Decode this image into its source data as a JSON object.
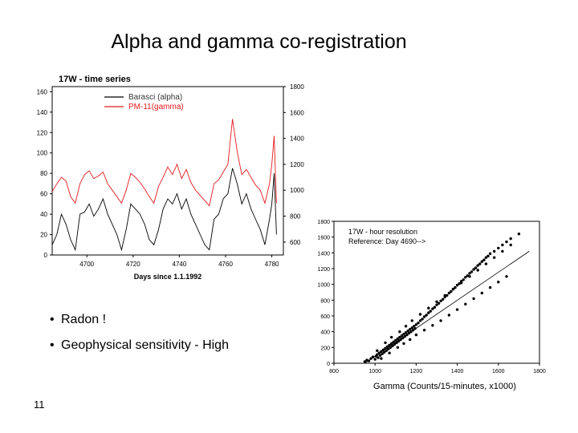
{
  "slide": {
    "title": "Alpha and gamma co-registration",
    "bullets": [
      "Radon !",
      "Geophysical sensitivity - High"
    ],
    "number": "11"
  },
  "chart_data": [
    {
      "type": "line",
      "title": "17W - time series",
      "xlabel": "Days since 1.1.1992",
      "xlim": [
        4685,
        4785
      ],
      "xticks": [
        4700,
        4720,
        4740,
        4760,
        4780
      ],
      "ylim_left": [
        0,
        165
      ],
      "yticks_left": [
        0,
        20,
        40,
        60,
        80,
        100,
        120,
        140,
        160
      ],
      "ylim_right": [
        500,
        1800
      ],
      "yticks_right": [
        600,
        800,
        1000,
        1200,
        1400,
        1600,
        1800
      ],
      "legend_position": "top-right",
      "series": [
        {
          "name": "Barasci (alpha)",
          "color": "#000000",
          "axis": "left",
          "x": [
            4685,
            4687,
            4689,
            4691,
            4693,
            4695,
            4697,
            4699,
            4701,
            4703,
            4705,
            4707,
            4709,
            4711,
            4713,
            4715,
            4717,
            4719,
            4721,
            4723,
            4725,
            4727,
            4729,
            4731,
            4733,
            4735,
            4737,
            4739,
            4741,
            4743,
            4745,
            4747,
            4749,
            4751,
            4753,
            4755,
            4757,
            4759,
            4761,
            4763,
            4765,
            4767,
            4769,
            4771,
            4773,
            4775,
            4777,
            4779,
            4780,
            4781,
            4782
          ],
          "y": [
            10,
            20,
            40,
            30,
            15,
            5,
            40,
            42,
            50,
            38,
            45,
            55,
            40,
            30,
            20,
            5,
            25,
            50,
            45,
            40,
            30,
            15,
            10,
            25,
            45,
            55,
            50,
            60,
            45,
            55,
            40,
            30,
            20,
            10,
            5,
            35,
            40,
            55,
            60,
            85,
            70,
            50,
            60,
            45,
            35,
            25,
            10,
            35,
            50,
            80,
            20
          ]
        },
        {
          "name": "PM-11(gamma)",
          "color": "#e31a1c",
          "axis": "right",
          "x": [
            4685,
            4687,
            4689,
            4691,
            4693,
            4695,
            4697,
            4699,
            4701,
            4703,
            4705,
            4707,
            4709,
            4711,
            4713,
            4715,
            4717,
            4719,
            4721,
            4723,
            4725,
            4727,
            4729,
            4731,
            4733,
            4735,
            4737,
            4739,
            4741,
            4743,
            4745,
            4747,
            4749,
            4751,
            4753,
            4755,
            4757,
            4759,
            4761,
            4763,
            4765,
            4767,
            4769,
            4771,
            4773,
            4775,
            4777,
            4779,
            4780,
            4781,
            4782
          ],
          "y": [
            990,
            1050,
            1100,
            1070,
            950,
            900,
            1050,
            1120,
            1150,
            1090,
            1110,
            1140,
            1050,
            1000,
            950,
            900,
            1000,
            1130,
            1100,
            1060,
            1010,
            950,
            900,
            1030,
            1100,
            1180,
            1120,
            1200,
            1090,
            1160,
            1060,
            1000,
            960,
            920,
            880,
            1050,
            1080,
            1140,
            1200,
            1550,
            1300,
            1120,
            1160,
            1100,
            1040,
            1000,
            900,
            1050,
            1200,
            1420,
            900
          ]
        }
      ]
    },
    {
      "type": "scatter",
      "title": "17W - hour resolution",
      "subtitle": "Reference: Day 4690-->",
      "xlabel": "Gamma (Counts/15-minutes, x1000)",
      "xlim": [
        800,
        1800
      ],
      "xticks": [
        800,
        1000,
        1200,
        1400,
        1600,
        1800
      ],
      "ylim": [
        0,
        1800
      ],
      "yticks": [
        0,
        200,
        400,
        600,
        800,
        1000,
        1200,
        1400,
        1600,
        1800
      ],
      "trend_line": {
        "x": [
          950,
          1750
        ],
        "y": [
          0,
          1420
        ]
      },
      "points": {
        "x": [
          950,
          960,
          970,
          980,
          990,
          1000,
          1005,
          1010,
          1015,
          1020,
          1025,
          1030,
          1035,
          1040,
          1045,
          1050,
          1055,
          1060,
          1065,
          1070,
          1075,
          1080,
          1085,
          1090,
          1095,
          1100,
          1105,
          1110,
          1115,
          1120,
          1125,
          1130,
          1135,
          1140,
          1145,
          1150,
          1155,
          1160,
          1165,
          1170,
          1175,
          1180,
          1185,
          1190,
          1195,
          1200,
          1210,
          1220,
          1230,
          1240,
          1250,
          1260,
          1270,
          1280,
          1290,
          1300,
          1310,
          1320,
          1330,
          1340,
          1350,
          1360,
          1370,
          1380,
          1390,
          1400,
          1410,
          1420,
          1430,
          1440,
          1450,
          1460,
          1470,
          1480,
          1490,
          1500,
          1510,
          1520,
          1530,
          1540,
          1550,
          1560,
          1580,
          1600,
          1620,
          1640,
          1660,
          1700,
          1010,
          1050,
          1080,
          1120,
          1150,
          1180,
          1220,
          1260,
          1300,
          1340,
          1380,
          1420,
          1460,
          1500,
          1540,
          1580,
          1620,
          1660,
          1030,
          1070,
          1110,
          1140,
          1170,
          1200,
          1240,
          1280,
          1320,
          1360,
          1400,
          1440,
          1480,
          1520,
          1560,
          1600,
          1640
        ],
        "y": [
          20,
          40,
          30,
          60,
          80,
          50,
          90,
          110,
          70,
          130,
          100,
          150,
          120,
          170,
          140,
          190,
          160,
          210,
          180,
          230,
          200,
          250,
          220,
          270,
          240,
          290,
          260,
          310,
          280,
          330,
          300,
          350,
          320,
          370,
          340,
          390,
          360,
          410,
          380,
          430,
          400,
          450,
          420,
          470,
          440,
          490,
          510,
          540,
          560,
          590,
          610,
          640,
          660,
          690,
          710,
          740,
          760,
          790,
          810,
          840,
          860,
          890,
          910,
          940,
          960,
          990,
          1010,
          1040,
          1060,
          1090,
          1110,
          1140,
          1160,
          1190,
          1210,
          1240,
          1260,
          1290,
          1310,
          1340,
          1360,
          1390,
          1420,
          1460,
          1500,
          1540,
          1580,
          1640,
          160,
          260,
          330,
          400,
          470,
          540,
          620,
          700,
          780,
          860,
          940,
          1020,
          1100,
          1180,
          1260,
          1340,
          1420,
          1500,
          60,
          130,
          200,
          250,
          300,
          360,
          420,
          480,
          540,
          610,
          680,
          750,
          820,
          890,
          960,
          1030,
          1100
        ]
      }
    }
  ]
}
